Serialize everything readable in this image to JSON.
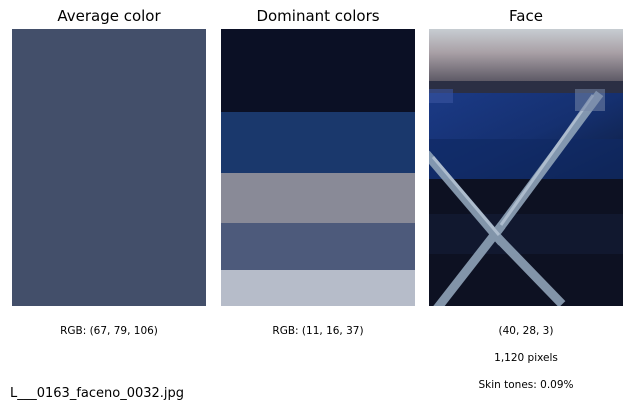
{
  "titles": {
    "average": "Average color",
    "dominant": "Dominant colors",
    "face": "Face"
  },
  "average": {
    "color": "#434f6a",
    "rgb_label": "RGB: (67, 79, 106)"
  },
  "dominant": {
    "rgb_label": "RGB: (11, 16, 37)",
    "bands": [
      {
        "color": "#0b1025",
        "share": 0.3
      },
      {
        "color": "#1a386c",
        "share": 0.22
      },
      {
        "color": "#898a97",
        "share": 0.18
      },
      {
        "color": "#4d5a7b",
        "share": 0.17
      },
      {
        "color": "#b6bcc9",
        "share": 0.13
      }
    ]
  },
  "face": {
    "color_label": "(40, 28, 3)",
    "pixels_label": "1,120 pixels",
    "skin_label": "Skin tones: 0.09%"
  },
  "filename": "L___0163_faceno_0032.jpg"
}
